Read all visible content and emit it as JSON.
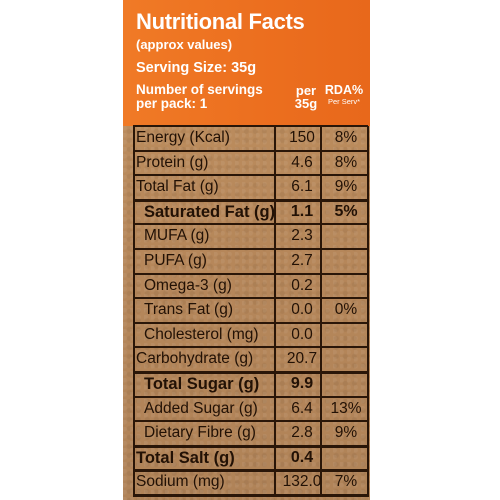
{
  "header": {
    "title": "Nutritional Facts",
    "approx": "(approx values)",
    "serving_size": "Serving Size: 35g",
    "servings_line1": "Number of servings",
    "servings_line2": "per pack: 1",
    "per_line1": "per",
    "per_line2": "35g",
    "rda_line1": "RDA%",
    "rda_line2": "Per Serv*"
  },
  "rows": [
    {
      "name": "Energy (Kcal)",
      "value": "150",
      "rda": "8%"
    },
    {
      "name": "Protein (g)",
      "value": "4.6",
      "rda": "8%"
    },
    {
      "name": "Total Fat (g)",
      "value": "6.1",
      "rda": "9%"
    },
    {
      "name": "Saturated Fat (g)",
      "value": "1.1",
      "rda": "5%"
    },
    {
      "name": "MUFA (g)",
      "value": "2.3",
      "rda": ""
    },
    {
      "name": "PUFA (g)",
      "value": "2.7",
      "rda": ""
    },
    {
      "name": "Omega-3 (g)",
      "value": "0.2",
      "rda": ""
    },
    {
      "name": "Trans Fat (g)",
      "value": "0.0",
      "rda": "0%"
    },
    {
      "name": "Cholesterol (mg)",
      "value": "0.0",
      "rda": ""
    },
    {
      "name": "Carbohydrate (g)",
      "value": "20.7",
      "rda": ""
    },
    {
      "name": "Total Sugar (g)",
      "value": "9.9",
      "rda": ""
    },
    {
      "name": "Added Sugar (g)",
      "value": "6.4",
      "rda": "13%"
    },
    {
      "name": "Dietary Fibre (g)",
      "value": "2.8",
      "rda": "9%"
    },
    {
      "name": "Total Salt (g)",
      "value": "0.4",
      "rda": ""
    },
    {
      "name": "Sodium (mg)",
      "value": "132.0",
      "rda": "7%"
    }
  ],
  "colors": {
    "header_orange": "#ee7322",
    "panel_kraft": "#b9895a",
    "ink": "#221105"
  }
}
